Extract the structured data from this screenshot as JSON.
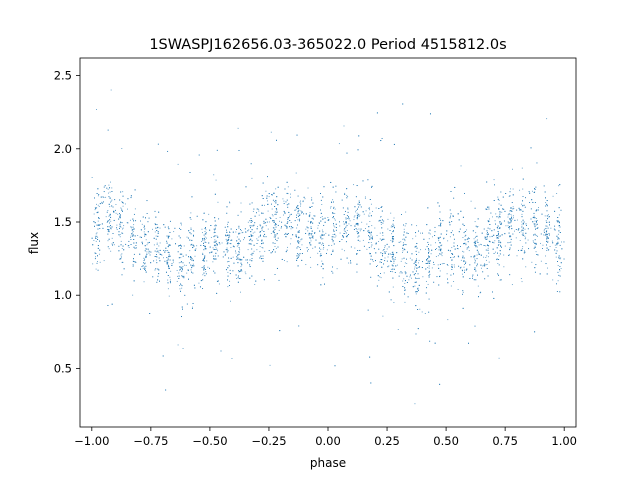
{
  "chart_data": {
    "type": "scatter",
    "title": "1SWASPJ162656.03-365022.0 Period 4515812.0s",
    "xlabel": "phase",
    "ylabel": "flux",
    "xlim": [
      -1.05,
      1.05
    ],
    "ylim": [
      0.1,
      2.62
    ],
    "xticks": [
      -1.0,
      -0.75,
      -0.5,
      -0.25,
      0.0,
      0.25,
      0.5,
      0.75,
      1.0
    ],
    "xtick_labels": [
      "−1.00",
      "−0.75",
      "−0.50",
      "−0.25",
      "0.00",
      "0.25",
      "0.50",
      "0.75",
      "1.00"
    ],
    "yticks": [
      0.5,
      1.0,
      1.5,
      2.0,
      2.5
    ],
    "ytick_labels": [
      "0.5",
      "1.0",
      "1.5",
      "2.0",
      "2.5"
    ],
    "grid": false,
    "legend": false,
    "color": "#1f77b4",
    "series": [
      {
        "x": [
          -0.98,
          -0.95,
          -0.9,
          -0.86,
          -0.82,
          -0.7,
          -0.62,
          -0.55,
          -0.45,
          -0.38,
          -0.3,
          -0.22,
          -0.1,
          -0.02,
          0.02,
          0.1,
          0.15,
          0.18,
          0.3,
          0.38,
          0.45,
          0.55,
          0.62,
          0.7,
          0.78,
          0.9,
          0.95,
          1.0
        ],
        "y": [
          1.45,
          1.55,
          1.5,
          1.45,
          1.4,
          1.3,
          1.2,
          1.3,
          1.35,
          1.3,
          1.4,
          1.5,
          1.45,
          1.4,
          1.45,
          1.5,
          1.55,
          1.4,
          1.3,
          1.2,
          1.3,
          1.35,
          1.3,
          1.4,
          1.5,
          1.45,
          1.4,
          1.35
        ]
      }
    ]
  }
}
